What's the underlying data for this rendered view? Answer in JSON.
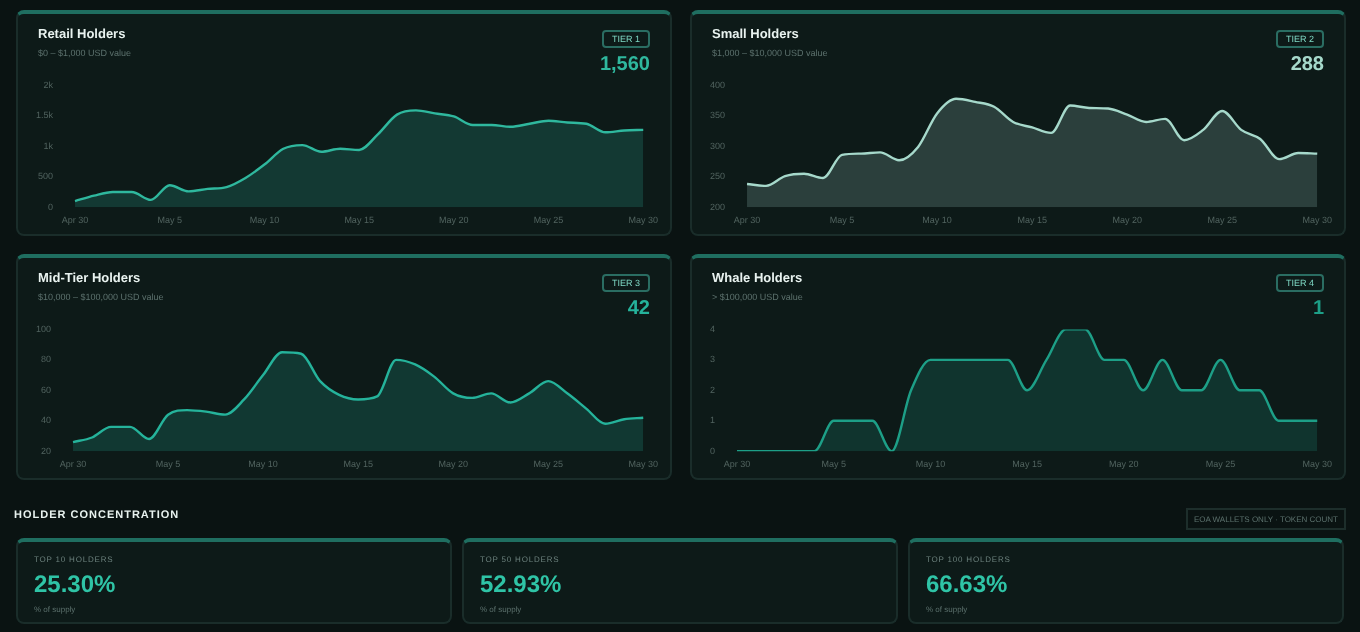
{
  "chart_data": [
    {
      "type": "area",
      "title": "Retail Holders",
      "subtitle": "$0 – $1,000 USD value",
      "annotations": [
        "TIER 1",
        "1,560"
      ],
      "color": "#2fb89e",
      "categories": [
        "Apr 30",
        null,
        null,
        null,
        null,
        "May 5",
        null,
        null,
        null,
        null,
        "May 10",
        null,
        null,
        null,
        null,
        "May 15",
        null,
        null,
        null,
        null,
        "May 20",
        null,
        null,
        null,
        null,
        "May 25",
        null,
        null,
        null,
        null,
        "May 30"
      ],
      "values": [
        100,
        190,
        250,
        250,
        120,
        360,
        260,
        300,
        330,
        480,
        700,
        960,
        1020,
        910,
        960,
        940,
        1200,
        1520,
        1590,
        1540,
        1490,
        1350,
        1350,
        1320,
        1370,
        1420,
        1390,
        1370,
        1230,
        1260,
        1270
      ],
      "ylim": [
        0,
        2000
      ],
      "yticks": [
        0,
        500,
        {
          "value": 1000,
          "label": "1k"
        },
        {
          "value": 1500,
          "label": "1.5k"
        },
        {
          "value": 2000,
          "label": "2k"
        }
      ]
    },
    {
      "type": "area",
      "title": "Small Holders",
      "subtitle": "$1,000 – $10,000 USD value",
      "annotations": [
        "TIER 2",
        "288"
      ],
      "color": "#a6d9cb",
      "categories": [
        "Apr 30",
        null,
        null,
        null,
        null,
        "May 5",
        null,
        null,
        null,
        null,
        "May 10",
        null,
        null,
        null,
        null,
        "May 15",
        null,
        null,
        null,
        null,
        "May 20",
        null,
        null,
        null,
        null,
        "May 25",
        null,
        null,
        null,
        null,
        "May 30"
      ],
      "values": [
        238,
        235,
        251,
        255,
        248,
        286,
        288,
        290,
        277,
        299,
        354,
        378,
        373,
        365,
        340,
        331,
        322,
        367,
        363,
        362,
        352,
        340,
        345,
        310,
        327,
        358,
        327,
        312,
        279,
        289,
        288
      ],
      "ylim": [
        200,
        400
      ],
      "yticks": [
        200,
        250,
        300,
        350,
        400
      ]
    },
    {
      "type": "area",
      "title": "Mid-Tier Holders",
      "subtitle": "$10,000 – $100,000 USD value",
      "annotations": [
        "TIER 3",
        "42"
      ],
      "color": "#25b39b",
      "categories": [
        "Apr 30",
        null,
        null,
        null,
        null,
        "May 5",
        null,
        null,
        null,
        null,
        "May 10",
        null,
        null,
        null,
        null,
        "May 15",
        null,
        null,
        null,
        null,
        "May 20",
        null,
        null,
        null,
        null,
        "May 25",
        null,
        null,
        null,
        null,
        "May 30"
      ],
      "values": [
        26,
        29,
        36,
        36,
        28,
        44,
        47,
        46,
        44,
        54,
        70,
        85,
        84,
        66,
        57,
        54,
        56,
        80,
        77,
        69,
        58,
        55,
        58,
        52,
        58,
        66,
        58,
        48,
        38,
        41,
        42
      ],
      "ylim": [
        20,
        100
      ],
      "yticks": [
        20,
        40,
        60,
        80,
        100
      ]
    },
    {
      "type": "area",
      "title": "Whale Holders",
      "subtitle": "> $100,000 USD value",
      "annotations": [
        "TIER 4",
        "1"
      ],
      "color": "#1d9f87",
      "categories": [
        "Apr 30",
        null,
        null,
        null,
        null,
        "May 5",
        null,
        null,
        null,
        null,
        "May 10",
        null,
        null,
        null,
        null,
        "May 15",
        null,
        null,
        null,
        null,
        "May 20",
        null,
        null,
        null,
        null,
        "May 25",
        null,
        null,
        null,
        null,
        "May 30"
      ],
      "values": [
        0,
        0,
        0,
        0,
        0,
        1,
        1,
        1,
        0,
        2,
        3,
        3,
        3,
        3,
        3,
        2,
        3,
        4,
        4,
        3,
        3,
        2,
        3,
        2,
        2,
        3,
        2,
        2,
        1,
        1,
        1
      ],
      "ylim": [
        0,
        4
      ],
      "yticks": [
        0,
        1,
        2,
        3,
        4
      ]
    },
    {
      "type": "other",
      "title": "HOLDER CONCENTRATION",
      "annotations": [
        "EOA WALLETS ONLY · TOKEN COUNT"
      ]
    },
    {
      "type": "other",
      "title": "TOP 10 HOLDERS",
      "annotations": [
        "25.30%",
        "% of supply"
      ]
    },
    {
      "type": "other",
      "title": "TOP 50 HOLDERS",
      "annotations": [
        "52.93%",
        "% of supply"
      ]
    },
    {
      "type": "other",
      "title": "TOP 100 HOLDERS",
      "annotations": [
        "66.63%",
        "% of supply"
      ]
    }
  ]
}
